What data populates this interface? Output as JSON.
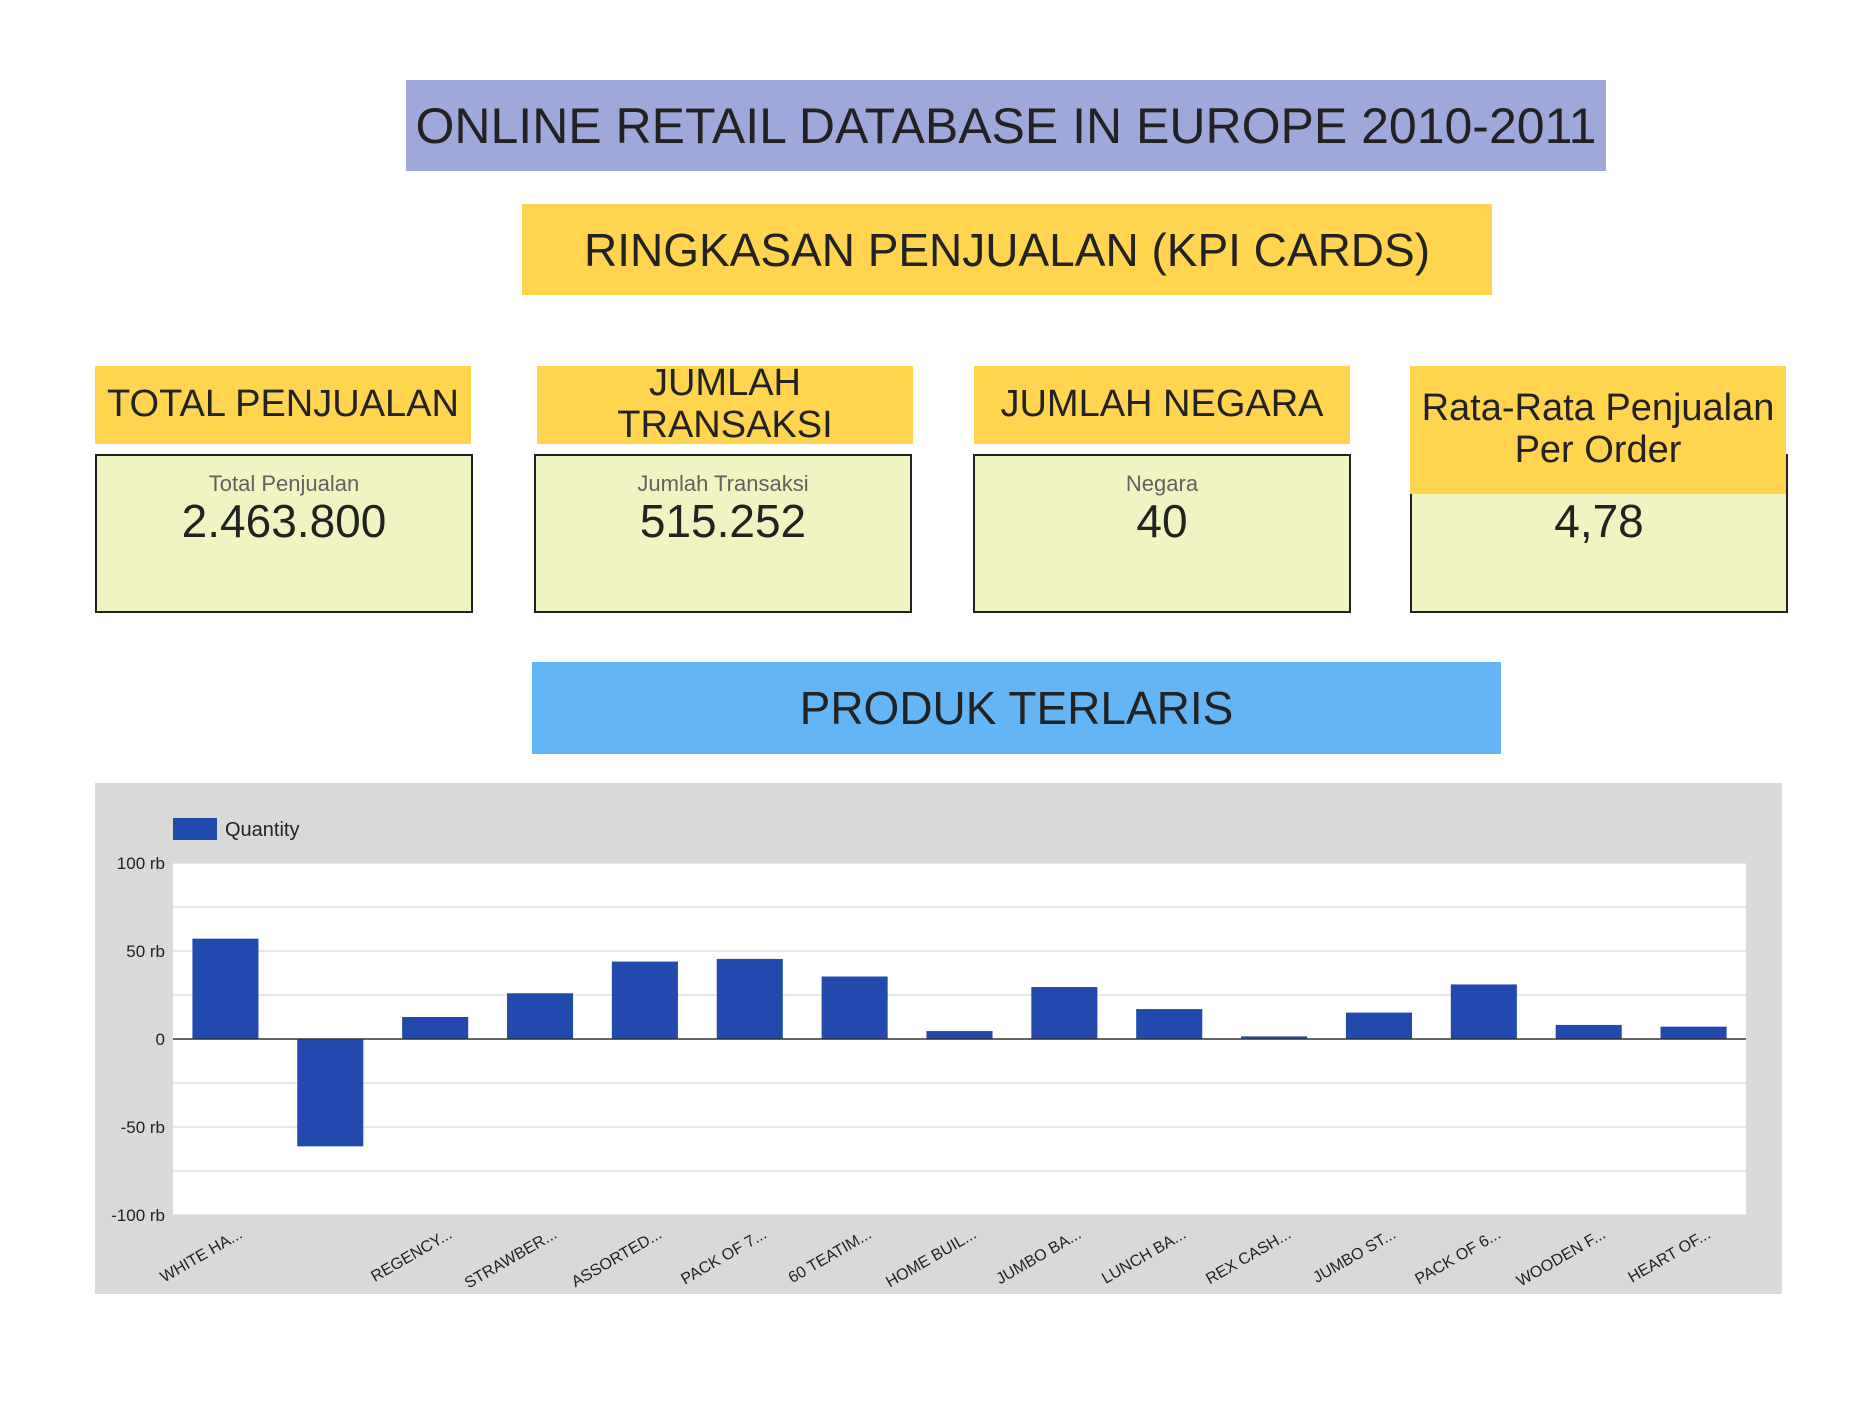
{
  "header": {
    "title": "ONLINE RETAIL DATABASE IN EUROPE 2010-2011",
    "subtitle": "RINGKASAN PENJUALAN (KPI CARDS)",
    "section_title": "PRODUK TERLARIS"
  },
  "kpis": [
    {
      "header": "TOTAL PENJUALAN",
      "label": "Total Penjualan",
      "value": "2.463.800"
    },
    {
      "header": "JUMLAH TRANSAKSI",
      "label": "Jumlah Transaksi",
      "value": "515.252"
    },
    {
      "header": "JUMLAH NEGARA",
      "label": "Negara",
      "value": "40"
    },
    {
      "header": "Rata-Rata Penjualan Per Order",
      "label": "",
      "value": "4,78"
    }
  ],
  "colors": {
    "title_bg": "#9fa8da",
    "subtitle_bg": "#ffd54f",
    "kpi_header_bg": "#ffd54f",
    "kpi_card_bg": "#f0f4c3",
    "section_bg": "#64b5f6",
    "chart_panel_bg": "#d9d9d9",
    "plot_bg": "#ffffff",
    "bar": "#2249ad"
  },
  "chart_data": {
    "type": "bar",
    "legend": {
      "position": "top-left"
    },
    "grid": true,
    "ylim": [
      -100000,
      100000
    ],
    "yticks": [
      {
        "value": 100000,
        "label": "100 rb"
      },
      {
        "value": 50000,
        "label": "50 rb"
      },
      {
        "value": 0,
        "label": "0"
      },
      {
        "value": -50000,
        "label": "-50 rb"
      },
      {
        "value": -100000,
        "label": "-100 rb"
      }
    ],
    "categories": [
      "WHITE HA...",
      "",
      "REGENCY...",
      "STRAWBER...",
      "ASSORTED...",
      "PACK OF 7...",
      "60 TEATIM...",
      "HOME BUIL...",
      "JUMBO BA...",
      "LUNCH BA...",
      "REX CASH...",
      "JUMBO ST...",
      "PACK OF 6...",
      "WOODEN F...",
      "HEART OF..."
    ],
    "series": [
      {
        "name": "Quantity",
        "values": [
          57000,
          -61000,
          12500,
          26000,
          44000,
          45500,
          35500,
          4500,
          29500,
          17000,
          1500,
          15000,
          31000,
          8000,
          7000
        ]
      }
    ]
  }
}
